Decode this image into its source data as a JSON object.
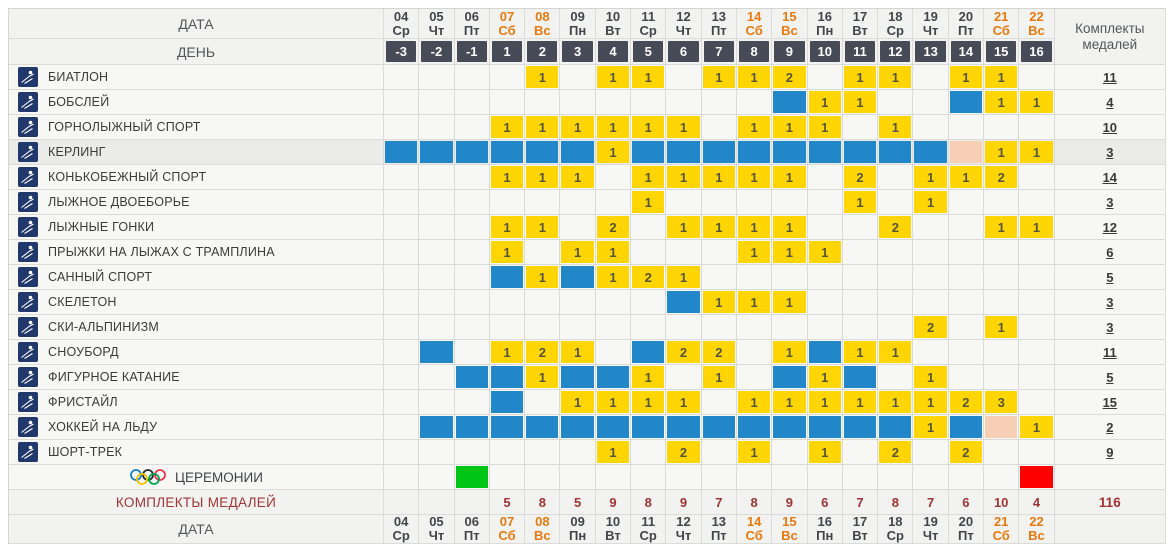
{
  "meta": {
    "title_date": "ДАТА",
    "title_day": "ДЕНЬ",
    "medal_header": "Комплекты медалей",
    "totals_label": "КОМПЛЕКТЫ МЕДАЛЕЙ",
    "ceremonies_label": "ЦЕРЕМОНИИ",
    "grand_total": "116"
  },
  "colors": {
    "medal_event_yellow": "#ffd504",
    "competition_blue": "#2287c8",
    "reserve_pink": "#f6cfb4",
    "opening_green": "#00c514",
    "closing_red": "#ff0000",
    "day_cell_dark": "#474a57",
    "weekend_orange": "#e8790e",
    "totals_red": "#a03434",
    "icon_navy": "#20386b"
  },
  "columns": [
    {
      "date": "04",
      "dow": "Ср",
      "day": "-3",
      "weekend": false
    },
    {
      "date": "05",
      "dow": "Чт",
      "day": "-2",
      "weekend": false
    },
    {
      "date": "06",
      "dow": "Пт",
      "day": "-1",
      "weekend": false
    },
    {
      "date": "07",
      "dow": "Сб",
      "day": "1",
      "weekend": true
    },
    {
      "date": "08",
      "dow": "Вс",
      "day": "2",
      "weekend": true
    },
    {
      "date": "09",
      "dow": "Пн",
      "day": "3",
      "weekend": false
    },
    {
      "date": "10",
      "dow": "Вт",
      "day": "4",
      "weekend": false
    },
    {
      "date": "11",
      "dow": "Ср",
      "day": "5",
      "weekend": false
    },
    {
      "date": "12",
      "dow": "Чт",
      "day": "6",
      "weekend": false
    },
    {
      "date": "13",
      "dow": "Пт",
      "day": "7",
      "weekend": false
    },
    {
      "date": "14",
      "dow": "Сб",
      "day": "8",
      "weekend": true
    },
    {
      "date": "15",
      "dow": "Вс",
      "day": "9",
      "weekend": true
    },
    {
      "date": "16",
      "dow": "Пн",
      "day": "10",
      "weekend": false
    },
    {
      "date": "17",
      "dow": "Вт",
      "day": "11",
      "weekend": false
    },
    {
      "date": "18",
      "dow": "Ср",
      "day": "12",
      "weekend": false
    },
    {
      "date": "19",
      "dow": "Чт",
      "day": "13",
      "weekend": false
    },
    {
      "date": "20",
      "dow": "Пт",
      "day": "14",
      "weekend": false
    },
    {
      "date": "21",
      "dow": "Сб",
      "day": "15",
      "weekend": true
    },
    {
      "date": "22",
      "dow": "Вс",
      "day": "16",
      "weekend": true
    }
  ],
  "legend_note": "cells: number = medal events that day (yellow), b = competition day (blue), p = reserve day (pink)",
  "sports": [
    {
      "name": "БИАТЛОН",
      "icon": "biathlon-icon",
      "total": "11",
      "highlight": false,
      "cells": [
        "",
        "",
        "",
        "",
        "1",
        "",
        "1",
        "1",
        "",
        "1",
        "1",
        "2",
        "",
        "1",
        "1",
        "",
        "1",
        "1",
        ""
      ]
    },
    {
      "name": "БОБСЛЕЙ",
      "icon": "bobsleigh-icon",
      "total": "4",
      "highlight": false,
      "cells": [
        "",
        "",
        "",
        "",
        "",
        "",
        "",
        "",
        "",
        "",
        "",
        "b",
        "1",
        "1",
        "",
        "",
        "b",
        "1",
        "1"
      ]
    },
    {
      "name": "ГОРНОЛЫЖНЫЙ СПОРТ",
      "icon": "alpine-skiing-icon",
      "total": "10",
      "highlight": false,
      "cells": [
        "",
        "",
        "",
        "1",
        "1",
        "1",
        "1",
        "1",
        "1",
        "",
        "1",
        "1",
        "1",
        "",
        "1",
        "",
        "",
        "",
        ""
      ]
    },
    {
      "name": "КЕРЛИНГ",
      "icon": "curling-icon",
      "total": "3",
      "highlight": true,
      "cells": [
        "b",
        "b",
        "b",
        "b",
        "b",
        "b",
        "1",
        "b",
        "b",
        "b",
        "b",
        "b",
        "b",
        "b",
        "b",
        "b",
        "p",
        "1",
        "1"
      ]
    },
    {
      "name": "КОНЬКОБЕЖНЫЙ СПОРТ",
      "icon": "speed-skating-icon",
      "total": "14",
      "highlight": false,
      "cells": [
        "",
        "",
        "",
        "1",
        "1",
        "1",
        "",
        "1",
        "1",
        "1",
        "1",
        "1",
        "",
        "2",
        "",
        "1",
        "1",
        "2",
        ""
      ]
    },
    {
      "name": "ЛЫЖНОЕ ДВОЕБОРЬЕ",
      "icon": "nordic-combined-icon",
      "total": "3",
      "highlight": false,
      "cells": [
        "",
        "",
        "",
        "",
        "",
        "",
        "",
        "1",
        "",
        "",
        "",
        "",
        "",
        "1",
        "",
        "1",
        "",
        "",
        ""
      ]
    },
    {
      "name": "ЛЫЖНЫЕ ГОНКИ",
      "icon": "cross-country-icon",
      "total": "12",
      "highlight": false,
      "cells": [
        "",
        "",
        "",
        "1",
        "1",
        "",
        "2",
        "",
        "1",
        "1",
        "1",
        "1",
        "",
        "",
        "2",
        "",
        "",
        "1",
        "1"
      ]
    },
    {
      "name": "ПРЫЖКИ НА ЛЫЖАХ С ТРАМПЛИНА",
      "icon": "ski-jumping-icon",
      "total": "6",
      "highlight": false,
      "cells": [
        "",
        "",
        "",
        "1",
        "",
        "1",
        "1",
        "",
        "",
        "",
        "1",
        "1",
        "1",
        "",
        "",
        "",
        "",
        "",
        ""
      ]
    },
    {
      "name": "САННЫЙ СПОРТ",
      "icon": "luge-icon",
      "total": "5",
      "highlight": false,
      "cells": [
        "",
        "",
        "",
        "b",
        "1",
        "b",
        "1",
        "2",
        "1",
        "",
        "",
        "",
        "",
        "",
        "",
        "",
        "",
        "",
        ""
      ]
    },
    {
      "name": "СКЕЛЕТОН",
      "icon": "skeleton-icon",
      "total": "3",
      "highlight": false,
      "cells": [
        "",
        "",
        "",
        "",
        "",
        "",
        "",
        "",
        "b",
        "1",
        "1",
        "1",
        "",
        "",
        "",
        "",
        "",
        "",
        ""
      ]
    },
    {
      "name": "СКИ-АЛЬПИНИЗМ",
      "icon": "ski-mountaineering-icon",
      "total": "3",
      "highlight": false,
      "cells": [
        "",
        "",
        "",
        "",
        "",
        "",
        "",
        "",
        "",
        "",
        "",
        "",
        "",
        "",
        "",
        "2",
        "",
        "1",
        ""
      ]
    },
    {
      "name": "СНОУБОРД",
      "icon": "snowboard-icon",
      "total": "11",
      "highlight": false,
      "cells": [
        "",
        "b",
        "",
        "1",
        "2",
        "1",
        "",
        "b",
        "2",
        "2",
        "",
        "1",
        "b",
        "1",
        "1",
        "",
        "",
        "",
        ""
      ]
    },
    {
      "name": "ФИГУРНОЕ КАТАНИЕ",
      "icon": "figure-skating-icon",
      "total": "5",
      "highlight": false,
      "cells": [
        "",
        "",
        "b",
        "b",
        "1",
        "b",
        "b",
        "1",
        "",
        "1",
        "",
        "b",
        "1",
        "b",
        "",
        "1",
        "",
        "",
        ""
      ]
    },
    {
      "name": "ФРИСТАЙЛ",
      "icon": "freestyle-icon",
      "total": "15",
      "highlight": false,
      "cells": [
        "",
        "",
        "",
        "b",
        "",
        "1",
        "1",
        "1",
        "1",
        "",
        "1",
        "1",
        "1",
        "1",
        "1",
        "1",
        "2",
        "3",
        ""
      ]
    },
    {
      "name": "ХОККЕЙ НА ЛЬДУ",
      "icon": "ice-hockey-icon",
      "total": "2",
      "highlight": false,
      "cells": [
        "",
        "b",
        "b",
        "b",
        "b",
        "b",
        "b",
        "b",
        "b",
        "b",
        "b",
        "b",
        "b",
        "b",
        "b",
        "1",
        "b",
        "p",
        "1"
      ]
    },
    {
      "name": "ШОРТ-ТРЕК",
      "icon": "short-track-icon",
      "total": "9",
      "highlight": false,
      "cells": [
        "",
        "",
        "",
        "",
        "",
        "",
        "1",
        "",
        "2",
        "",
        "1",
        "",
        "1",
        "",
        "2",
        "",
        "2",
        "",
        ""
      ]
    }
  ],
  "ceremonies_cells": [
    "",
    "",
    "g",
    "",
    "",
    "",
    "",
    "",
    "",
    "",
    "",
    "",
    "",
    "",
    "",
    "",
    "",
    "",
    "r"
  ],
  "totals": [
    "",
    "",
    "",
    "5",
    "8",
    "5",
    "9",
    "8",
    "9",
    "7",
    "8",
    "9",
    "6",
    "7",
    "8",
    "7",
    "6",
    "10",
    "4"
  ]
}
